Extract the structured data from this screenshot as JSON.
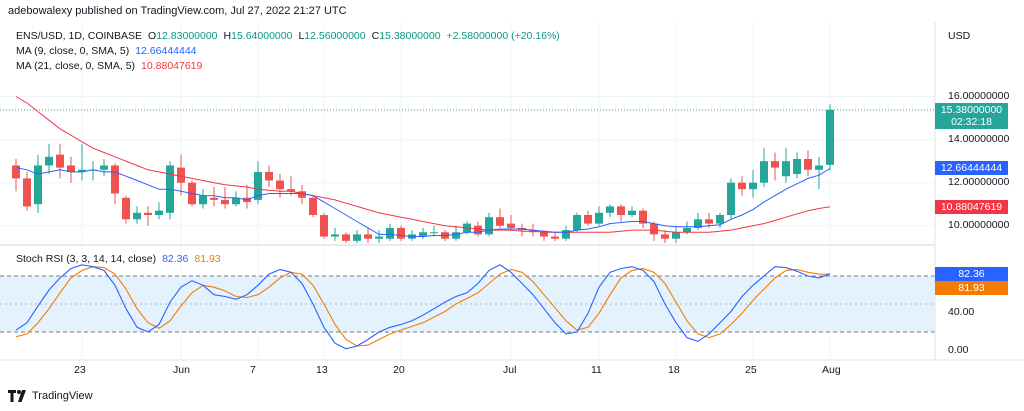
{
  "header": {
    "publisher_line": "adebowalexy published on TradingView.com, Jul 27, 2022 21:27 UTC"
  },
  "legend": {
    "symbol": "ENS/USD, 1D, COINBASE",
    "o_label": "O",
    "o_val": "12.83000000",
    "h_label": "H",
    "h_val": "15.64000000",
    "l_label": "L",
    "l_val": "12.56000000",
    "c_label": "C",
    "c_val": "15.38000000",
    "change": "+2.58000000 (+20.16%)",
    "ma9_label": "MA (9, close, 0, SMA, 5)",
    "ma9_val": "12.66444444",
    "ma21_label": "MA (21, close, 0, SMA, 5)",
    "ma21_val": "10.88047619",
    "rsi_label": "Stoch RSI (3, 3, 14, 14, close)",
    "rsi_k": "82.36",
    "rsi_d": "81.93"
  },
  "axis": {
    "currency": "USD",
    "price_ticks": [
      "16.00000000",
      "14.00000000",
      "12.00000000",
      "10.00000000"
    ],
    "rsi_ticks": [
      "40.00",
      "0.00"
    ],
    "x_ticks": [
      "23",
      "Jun",
      "7",
      "13",
      "20",
      "Jul",
      "11",
      "18",
      "25",
      "Aug"
    ]
  },
  "tags": {
    "last_price": "15.38000000",
    "countdown": "02:32:18",
    "ma9": "12.66444444",
    "ma21": "10.88047619",
    "rsi_k": "82.36",
    "rsi_d": "81.93"
  },
  "colors": {
    "up": "#26a69a",
    "down": "#ef5350",
    "ma9": "#2962ff",
    "ma21": "#f23645",
    "rsi_k": "#2962ff",
    "rsi_d": "#f57c00",
    "rsi_band": "#e3f2fd",
    "grid": "#f0f3fa"
  },
  "footer": {
    "brand": "TradingView"
  },
  "chart_data": {
    "type": "candlestick",
    "price_range": [
      9.2,
      17.0
    ],
    "rsi_range": [
      -10,
      110
    ],
    "rsi_band": [
      20,
      80
    ],
    "x_tick_days": [
      7,
      16,
      23,
      29,
      36,
      46,
      54,
      61,
      68,
      75
    ],
    "candles": [
      [
        1,
        12.8,
        12.2,
        13.1,
        11.6
      ],
      [
        2,
        12.2,
        10.9,
        12.5,
        10.7
      ],
      [
        3,
        11.0,
        12.8,
        13.3,
        10.6
      ],
      [
        4,
        12.8,
        13.2,
        13.8,
        12.4
      ],
      [
        5,
        13.3,
        12.7,
        13.8,
        12.2
      ],
      [
        6,
        12.8,
        12.5,
        13.2,
        12.0
      ],
      [
        7,
        12.5,
        12.6,
        13.8,
        12.1
      ],
      [
        8,
        12.6,
        12.6,
        13.0,
        12.1
      ],
      [
        9,
        12.6,
        12.8,
        13.1,
        12.3
      ],
      [
        10,
        12.8,
        11.5,
        12.9,
        11.0
      ],
      [
        11,
        11.3,
        10.3,
        11.4,
        10.1
      ],
      [
        12,
        10.3,
        10.6,
        10.9,
        10.1
      ],
      [
        13,
        10.6,
        10.5,
        10.9,
        10.0
      ],
      [
        14,
        10.5,
        10.7,
        11.1,
        10.3
      ],
      [
        15,
        10.6,
        12.8,
        13.0,
        10.3
      ],
      [
        16,
        12.7,
        12.0,
        13.3,
        11.4
      ],
      [
        17,
        12.0,
        11.0,
        12.1,
        10.9
      ],
      [
        18,
        11.0,
        11.4,
        11.7,
        10.8
      ],
      [
        19,
        11.3,
        11.2,
        11.8,
        10.9
      ],
      [
        20,
        11.2,
        11.0,
        11.8,
        10.8
      ],
      [
        21,
        11.0,
        11.3,
        11.6,
        10.9
      ],
      [
        22,
        11.3,
        11.1,
        11.9,
        10.8
      ],
      [
        23,
        11.2,
        12.5,
        13.0,
        11.0
      ],
      [
        24,
        12.5,
        12.1,
        12.8,
        11.8
      ],
      [
        25,
        12.1,
        11.7,
        12.4,
        11.3
      ],
      [
        26,
        11.7,
        11.6,
        12.3,
        11.4
      ],
      [
        27,
        11.6,
        11.3,
        11.9,
        11.0
      ],
      [
        28,
        11.3,
        10.5,
        11.4,
        10.4
      ],
      [
        29,
        10.5,
        9.5,
        10.6,
        9.4
      ],
      [
        30,
        9.5,
        9.6,
        9.9,
        9.3
      ],
      [
        31,
        9.6,
        9.3,
        9.7,
        9.2
      ],
      [
        32,
        9.3,
        9.6,
        9.8,
        9.2
      ],
      [
        33,
        9.6,
        9.4,
        9.9,
        9.2
      ],
      [
        34,
        9.4,
        9.5,
        9.8,
        9.2
      ],
      [
        35,
        9.4,
        9.9,
        10.1,
        9.3
      ],
      [
        36,
        9.9,
        9.4,
        10.0,
        9.3
      ],
      [
        37,
        9.4,
        9.6,
        9.8,
        9.3
      ],
      [
        38,
        9.5,
        9.7,
        9.9,
        9.4
      ],
      [
        39,
        9.7,
        9.7,
        10.0,
        9.5
      ],
      [
        40,
        9.7,
        9.4,
        9.8,
        9.3
      ],
      [
        41,
        9.4,
        9.7,
        10.0,
        9.3
      ],
      [
        42,
        9.7,
        10.1,
        10.2,
        9.6
      ],
      [
        43,
        10.0,
        9.6,
        10.2,
        9.5
      ],
      [
        44,
        9.6,
        10.4,
        10.6,
        9.5
      ],
      [
        45,
        10.4,
        10.0,
        10.8,
        9.9
      ],
      [
        46,
        10.1,
        9.9,
        10.5,
        9.8
      ],
      [
        47,
        9.9,
        9.8,
        10.1,
        9.5
      ],
      [
        48,
        9.8,
        9.7,
        10.1,
        9.5
      ],
      [
        49,
        9.7,
        9.5,
        9.8,
        9.3
      ],
      [
        50,
        9.5,
        9.4,
        9.7,
        9.3
      ],
      [
        51,
        9.4,
        9.8,
        10.0,
        9.3
      ],
      [
        52,
        9.8,
        10.5,
        10.6,
        9.7
      ],
      [
        53,
        10.5,
        10.1,
        10.7,
        10.0
      ],
      [
        54,
        10.1,
        10.6,
        10.9,
        10.0
      ],
      [
        55,
        10.6,
        10.9,
        11.0,
        10.4
      ],
      [
        56,
        10.9,
        10.5,
        11.0,
        10.2
      ],
      [
        57,
        10.5,
        10.7,
        10.9,
        10.4
      ],
      [
        58,
        10.7,
        10.1,
        10.8,
        9.9
      ],
      [
        59,
        10.1,
        9.6,
        10.2,
        9.3
      ],
      [
        60,
        9.6,
        9.4,
        9.8,
        9.2
      ],
      [
        61,
        9.4,
        9.7,
        10.0,
        9.2
      ],
      [
        62,
        9.7,
        9.9,
        10.2,
        9.6
      ],
      [
        63,
        9.9,
        10.3,
        10.6,
        9.8
      ],
      [
        64,
        10.3,
        10.1,
        10.6,
        9.9
      ],
      [
        65,
        10.1,
        10.5,
        10.6,
        9.9
      ],
      [
        66,
        10.5,
        12.0,
        12.2,
        10.3
      ],
      [
        67,
        12.0,
        11.7,
        12.3,
        11.4
      ],
      [
        68,
        11.7,
        12.0,
        12.6,
        11.3
      ],
      [
        69,
        12.0,
        13.0,
        13.6,
        11.8
      ],
      [
        70,
        13.0,
        12.7,
        13.4,
        12.1
      ],
      [
        71,
        12.3,
        13.0,
        13.6,
        12.0
      ],
      [
        72,
        12.4,
        13.1,
        13.4,
        12.2
      ],
      [
        73,
        13.1,
        12.6,
        13.5,
        12.3
      ],
      [
        74,
        12.6,
        12.8,
        13.2,
        11.7
      ],
      [
        75,
        12.83,
        15.38,
        15.64,
        12.56
      ]
    ],
    "ma9": [
      12.7,
      12.6,
      12.4,
      12.5,
      12.6,
      12.5,
      12.5,
      12.6,
      12.5,
      12.5,
      12.3,
      12.1,
      11.9,
      11.7,
      11.7,
      11.6,
      11.5,
      11.4,
      11.4,
      11.3,
      11.3,
      11.2,
      11.4,
      11.5,
      11.5,
      11.5,
      11.5,
      11.4,
      11.1,
      10.8,
      10.5,
      10.2,
      9.9,
      9.6,
      9.6,
      9.55,
      9.5,
      9.5,
      9.55,
      9.55,
      9.6,
      9.7,
      9.7,
      9.8,
      9.85,
      9.85,
      9.85,
      9.8,
      9.75,
      9.7,
      9.7,
      9.8,
      9.85,
      9.95,
      10.1,
      10.15,
      10.2,
      10.2,
      10.1,
      10.0,
      9.95,
      9.95,
      9.95,
      10.0,
      10.05,
      10.3,
      10.5,
      10.75,
      11.1,
      11.4,
      11.7,
      11.95,
      12.2,
      12.35,
      12.66
    ],
    "ma21": [
      16.0,
      15.7,
      15.3,
      14.9,
      14.5,
      14.2,
      13.9,
      13.6,
      13.4,
      13.2,
      13.0,
      12.8,
      12.6,
      12.5,
      12.4,
      12.3,
      12.2,
      12.1,
      12.0,
      11.9,
      11.85,
      11.8,
      11.7,
      11.65,
      11.6,
      11.6,
      11.5,
      11.4,
      11.3,
      11.2,
      11.05,
      10.9,
      10.75,
      10.6,
      10.5,
      10.4,
      10.3,
      10.2,
      10.1,
      10.0,
      9.95,
      9.9,
      9.85,
      9.8,
      9.8,
      9.8,
      9.75,
      9.75,
      9.7,
      9.7,
      9.7,
      9.7,
      9.7,
      9.7,
      9.7,
      9.75,
      9.8,
      9.8,
      9.8,
      9.75,
      9.7,
      9.7,
      9.7,
      9.7,
      9.75,
      9.8,
      9.9,
      10.0,
      10.1,
      10.25,
      10.4,
      10.55,
      10.7,
      10.8,
      10.88
    ],
    "stoch_k": [
      22,
      30,
      48,
      65,
      78,
      88,
      92,
      90,
      86,
      70,
      45,
      25,
      20,
      28,
      52,
      68,
      75,
      70,
      60,
      58,
      55,
      60,
      70,
      82,
      87,
      84,
      72,
      50,
      25,
      8,
      2,
      5,
      12,
      20,
      25,
      28,
      32,
      38,
      45,
      52,
      58,
      62,
      72,
      86,
      92,
      84,
      72,
      60,
      45,
      30,
      18,
      20,
      40,
      68,
      84,
      88,
      90,
      86,
      74,
      50,
      30,
      14,
      10,
      18,
      30,
      42,
      58,
      70,
      80,
      90,
      89,
      85,
      80,
      78,
      82.36
    ],
    "stoch_d": [
      15,
      18,
      30,
      45,
      62,
      78,
      86,
      90,
      89,
      82,
      66,
      45,
      30,
      24,
      32,
      48,
      62,
      70,
      68,
      64,
      58,
      57,
      60,
      68,
      78,
      84,
      82,
      70,
      50,
      28,
      12,
      5,
      6,
      12,
      18,
      22,
      26,
      30,
      36,
      42,
      50,
      56,
      62,
      72,
      82,
      87,
      84,
      74,
      60,
      46,
      32,
      22,
      25,
      40,
      60,
      78,
      86,
      88,
      84,
      72,
      52,
      32,
      18,
      14,
      18,
      28,
      40,
      54,
      66,
      78,
      86,
      87,
      84,
      82,
      81.93
    ]
  }
}
